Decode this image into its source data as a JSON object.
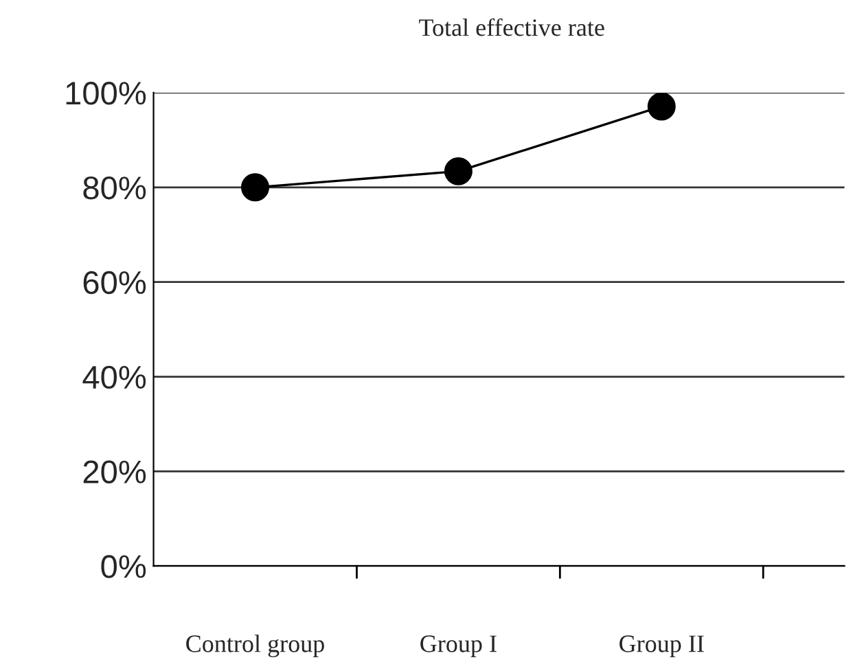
{
  "chart_data": {
    "type": "line",
    "title": "Total effective rate",
    "categories": [
      "Control group",
      "Group I",
      "Group II"
    ],
    "series": [
      {
        "color": "#000000",
        "values": [
          80,
          83.4,
          97.1
        ]
      }
    ],
    "ylim": [
      0,
      100
    ],
    "yticks": [
      {
        "value": 0,
        "label": "0%"
      },
      {
        "value": 20,
        "label": "20%"
      },
      {
        "value": 40,
        "label": "40%"
      },
      {
        "value": 60,
        "label": "60%"
      },
      {
        "value": 80,
        "label": "80%"
      },
      {
        "value": 100,
        "label": "100%"
      }
    ],
    "grid": "y",
    "marker": "circle",
    "line_style": "solid"
  }
}
